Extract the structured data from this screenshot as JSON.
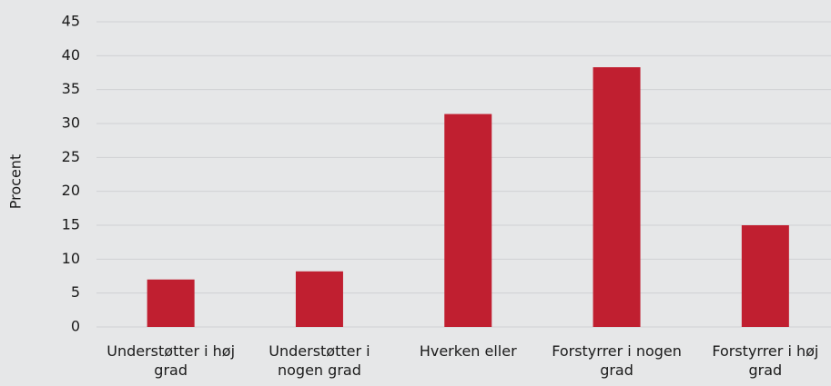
{
  "chart_data": {
    "type": "bar",
    "y_label": "Procent",
    "categories": [
      "Understøtter i høj grad",
      "Understøtter i nogen grad",
      "Hverken eller",
      "Forstyrrer i nogen grad",
      "Forstyrrer i høj grad"
    ],
    "values": [
      7,
      8.2,
      31.4,
      38.3,
      15
    ],
    "color": "#c01f30",
    "ylim": [
      0,
      45
    ],
    "yticks": [
      0,
      5,
      10,
      15,
      20,
      25,
      30,
      35,
      40,
      45
    ],
    "grid": true
  }
}
